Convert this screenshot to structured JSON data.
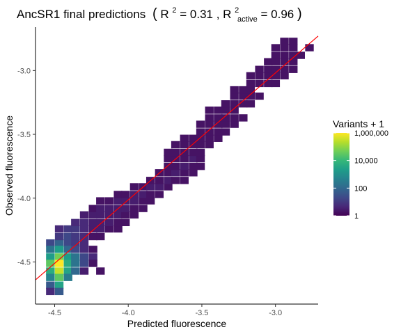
{
  "chart_data": {
    "type": "heatmap",
    "title": {
      "main": "AncSR1 final predictions",
      "open_paren": "(",
      "r_symbol": "R",
      "r_superscript": "2",
      "equals_1": " = 0.31 , ",
      "r2_symbol": "R",
      "r2_superscript": "2",
      "r2_subscript": "active",
      "equals_2": " = 0.96",
      "close_paren": ")"
    },
    "xlabel": "Predicted fluorescence",
    "ylabel": "Observed fluorescence",
    "xlim": [
      -4.63,
      -2.71
    ],
    "ylim": [
      -4.83,
      -2.66
    ],
    "x_ticks": [
      {
        "value": -4.5,
        "label": "-4.5"
      },
      {
        "value": -4.0,
        "label": "-4.0"
      },
      {
        "value": -3.5,
        "label": "-3.5"
      },
      {
        "value": -3.0,
        "label": "-3.0"
      }
    ],
    "y_ticks": [
      {
        "value": -4.5,
        "label": "-4.5"
      },
      {
        "value": -4.0,
        "label": "-4.0"
      },
      {
        "value": -3.5,
        "label": "-3.5"
      },
      {
        "value": -3.0,
        "label": "-3.0"
      }
    ],
    "bin_width_x": 0.0565,
    "bin_width_y": 0.0545,
    "bins": [
      [
        -4.53,
        -4.35,
        20
      ],
      [
        -4.47,
        -4.35,
        80
      ],
      [
        -4.41,
        -4.35,
        20
      ],
      [
        -4.36,
        -4.35,
        10
      ],
      [
        -4.3,
        -4.35,
        5
      ],
      [
        -4.53,
        -4.4,
        200
      ],
      [
        -4.47,
        -4.4,
        2000
      ],
      [
        -4.41,
        -4.4,
        100
      ],
      [
        -4.36,
        -4.4,
        20
      ],
      [
        -4.3,
        -4.4,
        5
      ],
      [
        -4.24,
        -4.4,
        2
      ],
      [
        -4.53,
        -4.46,
        2000
      ],
      [
        -4.47,
        -4.46,
        50000
      ],
      [
        -4.41,
        -4.46,
        2000
      ],
      [
        -4.36,
        -4.46,
        200
      ],
      [
        -4.3,
        -4.46,
        20
      ],
      [
        -4.24,
        -4.46,
        5
      ],
      [
        -4.53,
        -4.51,
        30000
      ],
      [
        -4.47,
        -4.51,
        1000000
      ],
      [
        -4.41,
        -4.51,
        5000
      ],
      [
        -4.36,
        -4.51,
        200
      ],
      [
        -4.3,
        -4.51,
        20
      ],
      [
        -4.24,
        -4.51,
        2
      ],
      [
        -4.53,
        -4.57,
        5000
      ],
      [
        -4.47,
        -4.57,
        300000
      ],
      [
        -4.41,
        -4.57,
        3000
      ],
      [
        -4.36,
        -4.57,
        100
      ],
      [
        -4.3,
        -4.57,
        3
      ],
      [
        -4.19,
        -4.57,
        2
      ],
      [
        -4.53,
        -4.62,
        500
      ],
      [
        -4.47,
        -4.62,
        30000
      ],
      [
        -4.41,
        -4.62,
        300
      ],
      [
        -4.53,
        -4.68,
        50
      ],
      [
        -4.47,
        -4.68,
        3000
      ],
      [
        -4.53,
        -4.73,
        5
      ],
      [
        -4.47,
        -4.73,
        50
      ],
      [
        -4.47,
        -4.3,
        10
      ],
      [
        -4.41,
        -4.3,
        20
      ],
      [
        -4.36,
        -4.3,
        10
      ],
      [
        -4.3,
        -4.3,
        5
      ],
      [
        -4.24,
        -4.3,
        2
      ],
      [
        -4.19,
        -4.3,
        2
      ],
      [
        -4.47,
        -4.24,
        5
      ],
      [
        -4.41,
        -4.24,
        10
      ],
      [
        -4.36,
        -4.24,
        10
      ],
      [
        -4.3,
        -4.24,
        5
      ],
      [
        -4.24,
        -4.24,
        3
      ],
      [
        -4.19,
        -4.24,
        3
      ],
      [
        -4.13,
        -4.24,
        2
      ],
      [
        -4.07,
        -4.24,
        2
      ],
      [
        -4.36,
        -4.19,
        5
      ],
      [
        -4.3,
        -4.19,
        5
      ],
      [
        -4.24,
        -4.19,
        3
      ],
      [
        -4.19,
        -4.19,
        3
      ],
      [
        -4.13,
        -4.19,
        3
      ],
      [
        -4.07,
        -4.19,
        2
      ],
      [
        -4.02,
        -4.19,
        2
      ],
      [
        -4.3,
        -4.13,
        3
      ],
      [
        -4.24,
        -4.13,
        3
      ],
      [
        -4.19,
        -4.13,
        3
      ],
      [
        -4.13,
        -4.13,
        3
      ],
      [
        -4.07,
        -4.13,
        3
      ],
      [
        -4.02,
        -4.13,
        2
      ],
      [
        -3.96,
        -4.13,
        2
      ],
      [
        -4.24,
        -4.08,
        2
      ],
      [
        -4.19,
        -4.08,
        3
      ],
      [
        -4.13,
        -4.08,
        3
      ],
      [
        -4.07,
        -4.08,
        3
      ],
      [
        -4.02,
        -4.08,
        3
      ],
      [
        -3.96,
        -4.08,
        2
      ],
      [
        -3.9,
        -4.08,
        2
      ],
      [
        -4.19,
        -4.02,
        2
      ],
      [
        -4.13,
        -4.02,
        2
      ],
      [
        -4.07,
        -4.02,
        3
      ],
      [
        -4.02,
        -4.02,
        3
      ],
      [
        -3.96,
        -4.02,
        3
      ],
      [
        -3.9,
        -4.02,
        2
      ],
      [
        -3.85,
        -4.02,
        2
      ],
      [
        -4.07,
        -3.97,
        2
      ],
      [
        -4.02,
        -3.97,
        2
      ],
      [
        -3.96,
        -3.97,
        3
      ],
      [
        -3.9,
        -3.97,
        3
      ],
      [
        -3.85,
        -3.97,
        2
      ],
      [
        -3.79,
        -3.97,
        2
      ],
      [
        -3.96,
        -3.91,
        2
      ],
      [
        -3.9,
        -3.91,
        2
      ],
      [
        -3.85,
        -3.91,
        3
      ],
      [
        -3.79,
        -3.91,
        3
      ],
      [
        -3.73,
        -3.91,
        2
      ],
      [
        -3.85,
        -3.86,
        2
      ],
      [
        -3.79,
        -3.86,
        2
      ],
      [
        -3.73,
        -3.86,
        3
      ],
      [
        -3.68,
        -3.86,
        2
      ],
      [
        -3.62,
        -3.86,
        2
      ],
      [
        -3.79,
        -3.8,
        2
      ],
      [
        -3.73,
        -3.8,
        2
      ],
      [
        -3.68,
        -3.8,
        3
      ],
      [
        -3.62,
        -3.8,
        2
      ],
      [
        -3.56,
        -3.8,
        2
      ],
      [
        -3.73,
        -3.75,
        2
      ],
      [
        -3.68,
        -3.75,
        2
      ],
      [
        -3.62,
        -3.75,
        3
      ],
      [
        -3.56,
        -3.75,
        2
      ],
      [
        -3.51,
        -3.75,
        2
      ],
      [
        -3.73,
        -3.69,
        2
      ],
      [
        -3.68,
        -3.69,
        2
      ],
      [
        -3.62,
        -3.69,
        2
      ],
      [
        -3.56,
        -3.69,
        3
      ],
      [
        -3.51,
        -3.69,
        2
      ],
      [
        -3.73,
        -3.64,
        2
      ],
      [
        -3.68,
        -3.64,
        2
      ],
      [
        -3.62,
        -3.64,
        2
      ],
      [
        -3.56,
        -3.64,
        2
      ],
      [
        -3.51,
        -3.64,
        2
      ],
      [
        -3.68,
        -3.58,
        2
      ],
      [
        -3.62,
        -3.58,
        2
      ],
      [
        -3.56,
        -3.58,
        2
      ],
      [
        -3.51,
        -3.58,
        2
      ],
      [
        -3.45,
        -3.58,
        2
      ],
      [
        -3.62,
        -3.53,
        2
      ],
      [
        -3.56,
        -3.53,
        2
      ],
      [
        -3.51,
        -3.53,
        2
      ],
      [
        -3.45,
        -3.53,
        2
      ],
      [
        -3.39,
        -3.53,
        2
      ],
      [
        -3.51,
        -3.48,
        2
      ],
      [
        -3.45,
        -3.48,
        2
      ],
      [
        -3.39,
        -3.48,
        2
      ],
      [
        -3.34,
        -3.48,
        2
      ],
      [
        -3.51,
        -3.42,
        2
      ],
      [
        -3.45,
        -3.42,
        2
      ],
      [
        -3.39,
        -3.42,
        2
      ],
      [
        -3.34,
        -3.42,
        2
      ],
      [
        -3.28,
        -3.42,
        2
      ],
      [
        -3.45,
        -3.37,
        2
      ],
      [
        -3.39,
        -3.37,
        2
      ],
      [
        -3.34,
        -3.37,
        2
      ],
      [
        -3.28,
        -3.37,
        2
      ],
      [
        -3.22,
        -3.37,
        2
      ],
      [
        -3.45,
        -3.31,
        2
      ],
      [
        -3.39,
        -3.31,
        2
      ],
      [
        -3.34,
        -3.31,
        2
      ],
      [
        -3.28,
        -3.31,
        2
      ],
      [
        -3.34,
        -3.26,
        2
      ],
      [
        -3.28,
        -3.26,
        2
      ],
      [
        -3.22,
        -3.26,
        2
      ],
      [
        -3.17,
        -3.26,
        2
      ],
      [
        -3.28,
        -3.2,
        2
      ],
      [
        -3.22,
        -3.2,
        2
      ],
      [
        -3.17,
        -3.2,
        2
      ],
      [
        -3.11,
        -3.2,
        2
      ],
      [
        -3.28,
        -3.15,
        2
      ],
      [
        -3.22,
        -3.15,
        2
      ],
      [
        -3.17,
        -3.15,
        2
      ],
      [
        -3.17,
        -3.1,
        2
      ],
      [
        -3.11,
        -3.1,
        2
      ],
      [
        -3.05,
        -3.1,
        2
      ],
      [
        -3.0,
        -3.1,
        2
      ],
      [
        -3.17,
        -3.04,
        2
      ],
      [
        -3.11,
        -3.04,
        2
      ],
      [
        -3.05,
        -3.04,
        2
      ],
      [
        -3.0,
        -3.04,
        2
      ],
      [
        -2.94,
        -3.04,
        2
      ],
      [
        -3.11,
        -2.99,
        2
      ],
      [
        -3.05,
        -2.99,
        2
      ],
      [
        -3.0,
        -2.99,
        2
      ],
      [
        -2.94,
        -2.99,
        2
      ],
      [
        -2.88,
        -2.99,
        2
      ],
      [
        -3.05,
        -2.93,
        2
      ],
      [
        -3.0,
        -2.93,
        2
      ],
      [
        -2.94,
        -2.93,
        2
      ],
      [
        -2.88,
        -2.93,
        2
      ],
      [
        -3.0,
        -2.88,
        2
      ],
      [
        -2.94,
        -2.88,
        2
      ],
      [
        -2.88,
        -2.88,
        2
      ],
      [
        -2.83,
        -2.88,
        2
      ],
      [
        -3.0,
        -2.82,
        2
      ],
      [
        -2.94,
        -2.82,
        2
      ],
      [
        -2.88,
        -2.82,
        2
      ],
      [
        -2.77,
        -2.82,
        2
      ],
      [
        -2.94,
        -2.77,
        2
      ],
      [
        -2.88,
        -2.77,
        2
      ]
    ],
    "fit_line": {
      "x": [
        -4.63,
        -2.71
      ],
      "y": [
        -4.64,
        -2.73
      ],
      "color": "#ff0000"
    },
    "legend": {
      "title": "Variants + 1",
      "placement": "right",
      "scale": "log10",
      "min": 1,
      "max": 1000000,
      "breaks": [
        {
          "value": 1000000,
          "label": "1,000,000"
        },
        {
          "value": 10000,
          "label": "10,000"
        },
        {
          "value": 100,
          "label": "100"
        },
        {
          "value": 1,
          "label": "1"
        }
      ]
    },
    "palette": "viridis",
    "colors": [
      "#440154",
      "#482878",
      "#3e4a89",
      "#31688e",
      "#26828e",
      "#1f9e89",
      "#35b779",
      "#6ece58",
      "#b5de2b",
      "#fde725"
    ]
  }
}
